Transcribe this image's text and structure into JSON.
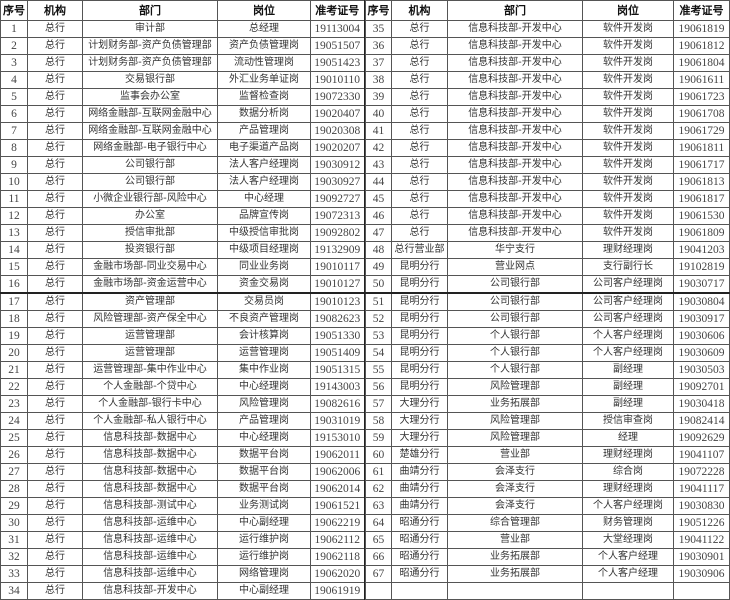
{
  "headers": [
    "序号",
    "机构",
    "部门",
    "岗位",
    "准考证号"
  ],
  "left_rows": [
    [
      "1",
      "总行",
      "审计部",
      "总经理",
      "19113004"
    ],
    [
      "2",
      "总行",
      "计划财务部-资产负债管理部",
      "资产负债管理岗",
      "19051507"
    ],
    [
      "3",
      "总行",
      "计划财务部-资产负债管理部",
      "流动性管理岗",
      "19051423"
    ],
    [
      "4",
      "总行",
      "交易银行部",
      "外汇业务单证岗",
      "19010110"
    ],
    [
      "5",
      "总行",
      "监事会办公室",
      "监督检查岗",
      "19072330"
    ],
    [
      "6",
      "总行",
      "网络金融部-互联网金融中心",
      "数据分析岗",
      "19020407"
    ],
    [
      "7",
      "总行",
      "网络金融部-互联网金融中心",
      "产品管理岗",
      "19020308"
    ],
    [
      "8",
      "总行",
      "网络金融部-电子银行中心",
      "电子渠道产品岗",
      "19020207"
    ],
    [
      "9",
      "总行",
      "公司银行部",
      "法人客户经理岗",
      "19030912"
    ],
    [
      "10",
      "总行",
      "公司银行部",
      "法人客户经理岗",
      "19030927"
    ],
    [
      "11",
      "总行",
      "小微企业银行部-风险中心",
      "中心经理",
      "19092727"
    ],
    [
      "12",
      "总行",
      "办公室",
      "品牌宣传岗",
      "19072313"
    ],
    [
      "13",
      "总行",
      "授信审批部",
      "中级授信审批岗",
      "19092802"
    ],
    [
      "14",
      "总行",
      "投资银行部",
      "中级项目经理岗",
      "19132909"
    ],
    [
      "15",
      "总行",
      "金融市场部-同业交易中心",
      "同业业务岗",
      "19010117"
    ],
    [
      "16",
      "总行",
      "金融市场部-资金运营中心",
      "资金交易岗",
      "19010127"
    ],
    [
      "17",
      "总行",
      "资产管理部",
      "交易员岗",
      "19010123"
    ],
    [
      "18",
      "总行",
      "风险管理部-资产保全中心",
      "不良资产管理岗",
      "19082623"
    ],
    [
      "19",
      "总行",
      "运营管理部",
      "会计核算岗",
      "19051330"
    ],
    [
      "20",
      "总行",
      "运营管理部",
      "运营管理岗",
      "19051409"
    ],
    [
      "21",
      "总行",
      "运营管理部-集中作业中心",
      "集中作业岗",
      "19051315"
    ],
    [
      "22",
      "总行",
      "个人金融部-个贷中心",
      "中心经理岗",
      "19143003"
    ],
    [
      "23",
      "总行",
      "个人金融部-银行卡中心",
      "风险管理岗",
      "19082616"
    ],
    [
      "24",
      "总行",
      "个人金融部-私人银行中心",
      "产品管理岗",
      "19031019"
    ],
    [
      "25",
      "总行",
      "信息科技部-数据中心",
      "中心经理岗",
      "19153010"
    ],
    [
      "26",
      "总行",
      "信息科技部-数据中心",
      "数据平台岗",
      "19062011"
    ],
    [
      "27",
      "总行",
      "信息科技部-数据中心",
      "数据平台岗",
      "19062006"
    ],
    [
      "28",
      "总行",
      "信息科技部-数据中心",
      "数据平台岗",
      "19062014"
    ],
    [
      "29",
      "总行",
      "信息科技部-测试中心",
      "业务测试岗",
      "19061521"
    ],
    [
      "30",
      "总行",
      "信息科技部-运维中心",
      "中心副经理",
      "19062219"
    ],
    [
      "31",
      "总行",
      "信息科技部-运维中心",
      "运行维护岗",
      "19062112"
    ],
    [
      "32",
      "总行",
      "信息科技部-运维中心",
      "运行维护岗",
      "19062118"
    ],
    [
      "33",
      "总行",
      "信息科技部-运维中心",
      "网络管理岗",
      "19062020"
    ],
    [
      "34",
      "总行",
      "信息科技部-开发中心",
      "中心副经理",
      "19061919"
    ]
  ],
  "right_rows": [
    [
      "35",
      "总行",
      "信息科技部-开发中心",
      "软件开发岗",
      "19061819"
    ],
    [
      "36",
      "总行",
      "信息科技部-开发中心",
      "软件开发岗",
      "19061812"
    ],
    [
      "37",
      "总行",
      "信息科技部-开发中心",
      "软件开发岗",
      "19061804"
    ],
    [
      "38",
      "总行",
      "信息科技部-开发中心",
      "软件开发岗",
      "19061611"
    ],
    [
      "39",
      "总行",
      "信息科技部-开发中心",
      "软件开发岗",
      "19061723"
    ],
    [
      "40",
      "总行",
      "信息科技部-开发中心",
      "软件开发岗",
      "19061708"
    ],
    [
      "41",
      "总行",
      "信息科技部-开发中心",
      "软件开发岗",
      "19061729"
    ],
    [
      "42",
      "总行",
      "信息科技部-开发中心",
      "软件开发岗",
      "19061811"
    ],
    [
      "43",
      "总行",
      "信息科技部-开发中心",
      "软件开发岗",
      "19061717"
    ],
    [
      "44",
      "总行",
      "信息科技部-开发中心",
      "软件开发岗",
      "19061813"
    ],
    [
      "45",
      "总行",
      "信息科技部-开发中心",
      "软件开发岗",
      "19061817"
    ],
    [
      "46",
      "总行",
      "信息科技部-开发中心",
      "软件开发岗",
      "19061530"
    ],
    [
      "47",
      "总行",
      "信息科技部-开发中心",
      "软件开发岗",
      "19061809"
    ],
    [
      "48",
      "总行营业部",
      "华宁支行",
      "理财经理岗",
      "19041203"
    ],
    [
      "49",
      "昆明分行",
      "营业网点",
      "支行副行长",
      "19102819"
    ],
    [
      "50",
      "昆明分行",
      "公司银行部",
      "公司客户经理岗",
      "19030717"
    ],
    [
      "51",
      "昆明分行",
      "公司银行部",
      "公司客户经理岗",
      "19030804"
    ],
    [
      "52",
      "昆明分行",
      "公司银行部",
      "公司客户经理岗",
      "19030917"
    ],
    [
      "53",
      "昆明分行",
      "个人银行部",
      "个人客户经理岗",
      "19030606"
    ],
    [
      "54",
      "昆明分行",
      "个人银行部",
      "个人客户经理岗",
      "19030609"
    ],
    [
      "55",
      "昆明分行",
      "个人银行部",
      "副经理",
      "19030503"
    ],
    [
      "56",
      "昆明分行",
      "风险管理部",
      "副经理",
      "19092701"
    ],
    [
      "57",
      "大理分行",
      "业务拓展部",
      "副经理",
      "19030418"
    ],
    [
      "58",
      "大理分行",
      "风险管理部",
      "授信审查岗",
      "19082414"
    ],
    [
      "59",
      "大理分行",
      "风险管理部",
      "经理",
      "19092629"
    ],
    [
      "60",
      "楚雄分行",
      "营业部",
      "理财经理岗",
      "19041107"
    ],
    [
      "61",
      "曲靖分行",
      "会泽支行",
      "综合岗",
      "19072228"
    ],
    [
      "62",
      "曲靖分行",
      "会泽支行",
      "理财经理岗",
      "19041117"
    ],
    [
      "63",
      "曲靖分行",
      "会泽支行",
      "个人客户经理岗",
      "19030830"
    ],
    [
      "64",
      "昭通分行",
      "综合管理部",
      "财务管理岗",
      "19051226"
    ],
    [
      "65",
      "昭通分行",
      "营业部",
      "大堂经理岗",
      "19041122"
    ],
    [
      "66",
      "昭通分行",
      "业务拓展部",
      "个人客户经理",
      "19030901"
    ],
    [
      "67",
      "昭通分行",
      "业务拓展部",
      "个人客户经理",
      "19030906"
    ],
    [
      "",
      "",
      "",
      "",
      ""
    ]
  ]
}
